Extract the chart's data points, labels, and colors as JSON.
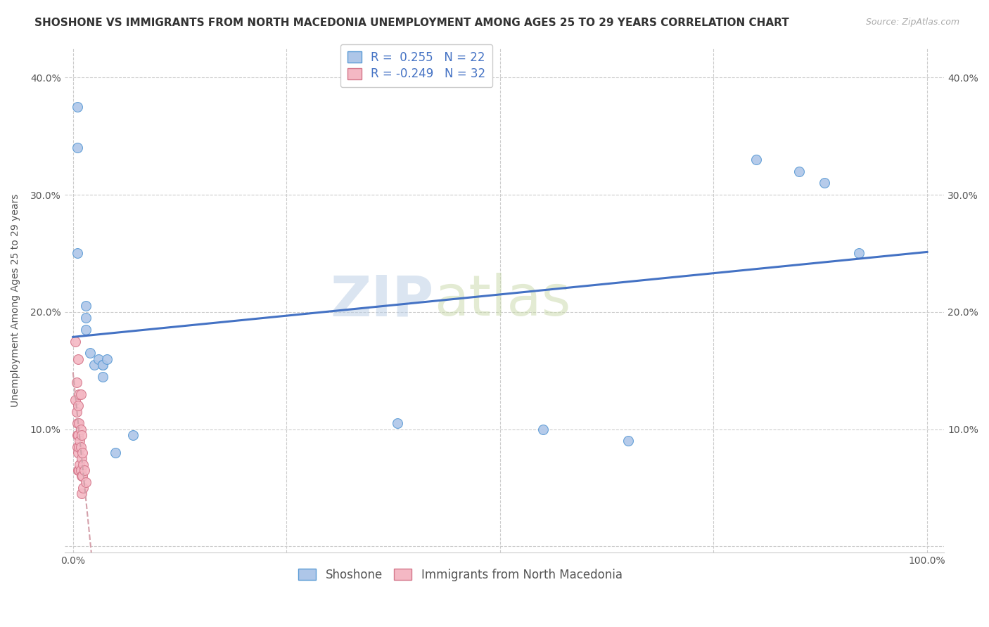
{
  "title": "SHOSHONE VS IMMIGRANTS FROM NORTH MACEDONIA UNEMPLOYMENT AMONG AGES 25 TO 29 YEARS CORRELATION CHART",
  "source": "Source: ZipAtlas.com",
  "ylabel": "Unemployment Among Ages 25 to 29 years",
  "xlabel": "",
  "xlim": [
    -0.01,
    1.02
  ],
  "ylim": [
    -0.005,
    0.425
  ],
  "xticks": [
    0.0,
    0.25,
    0.5,
    0.75,
    1.0
  ],
  "yticks": [
    0.0,
    0.1,
    0.2,
    0.3,
    0.4
  ],
  "background_color": "#ffffff",
  "grid_color": "#cccccc",
  "shoshone_color": "#aec6e8",
  "shoshone_edge_color": "#5b9bd5",
  "macedonia_color": "#f4b8c4",
  "macedonia_edge_color": "#d4768a",
  "line_shoshone_color": "#4472c4",
  "line_macedonia_color": "#d4a0aa",
  "R_shoshone": 0.255,
  "N_shoshone": 22,
  "R_macedonia": -0.249,
  "N_macedonia": 32,
  "legend_label_shoshone": "Shoshone",
  "legend_label_macedonia": "Immigrants from North Macedonia",
  "watermark_zip": "ZIP",
  "watermark_atlas": "atlas",
  "shoshone_x": [
    0.005,
    0.005,
    0.005,
    0.015,
    0.015,
    0.015,
    0.02,
    0.025,
    0.03,
    0.035,
    0.035,
    0.035,
    0.04,
    0.05,
    0.07,
    0.38,
    0.55,
    0.65,
    0.8,
    0.85,
    0.88,
    0.92
  ],
  "shoshone_y": [
    0.375,
    0.34,
    0.25,
    0.205,
    0.195,
    0.185,
    0.165,
    0.155,
    0.16,
    0.155,
    0.155,
    0.145,
    0.16,
    0.08,
    0.095,
    0.105,
    0.1,
    0.09,
    0.33,
    0.32,
    0.31,
    0.25
  ],
  "macedonia_x": [
    0.003,
    0.003,
    0.004,
    0.004,
    0.005,
    0.005,
    0.005,
    0.006,
    0.006,
    0.006,
    0.006,
    0.006,
    0.007,
    0.007,
    0.007,
    0.007,
    0.008,
    0.008,
    0.009,
    0.009,
    0.009,
    0.009,
    0.01,
    0.01,
    0.01,
    0.01,
    0.011,
    0.011,
    0.012,
    0.012,
    0.013,
    0.015
  ],
  "macedonia_y": [
    0.175,
    0.125,
    0.14,
    0.115,
    0.105,
    0.095,
    0.085,
    0.16,
    0.12,
    0.095,
    0.08,
    0.065,
    0.13,
    0.105,
    0.085,
    0.065,
    0.09,
    0.07,
    0.13,
    0.1,
    0.085,
    0.065,
    0.095,
    0.075,
    0.06,
    0.045,
    0.08,
    0.06,
    0.07,
    0.05,
    0.065,
    0.055
  ],
  "title_fontsize": 11,
  "source_fontsize": 9,
  "axis_label_fontsize": 10,
  "tick_fontsize": 10,
  "legend_fontsize": 12,
  "dot_size": 100
}
